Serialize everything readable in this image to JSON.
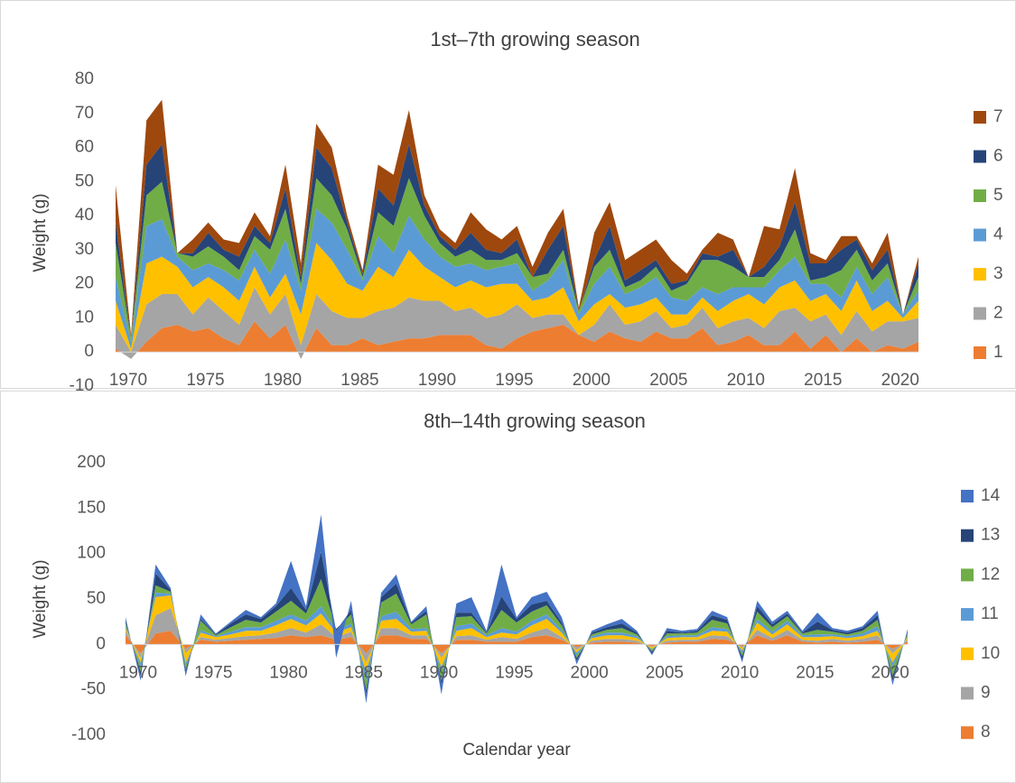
{
  "chart_data": [
    {
      "type": "area",
      "stacked": true,
      "title": "1st–7th growing season",
      "y_label": "Weight (g)",
      "x": [
        1970,
        1971,
        1972,
        1973,
        1974,
        1975,
        1976,
        1977,
        1978,
        1979,
        1980,
        1981,
        1982,
        1983,
        1984,
        1985,
        1986,
        1987,
        1988,
        1989,
        1990,
        1991,
        1992,
        1993,
        1994,
        1995,
        1996,
        1997,
        1998,
        1999,
        2000,
        2001,
        2002,
        2003,
        2004,
        2005,
        2006,
        2007,
        2008,
        2009,
        2010,
        2011,
        2012,
        2013,
        2014,
        2015,
        2016,
        2017,
        2018,
        2019,
        2020,
        2021,
        2022
      ],
      "xlim": [
        1970,
        2022
      ],
      "xticks": [
        1970,
        1975,
        1980,
        1985,
        1990,
        1995,
        2000,
        2005,
        2010,
        2015,
        2020
      ],
      "ylim": [
        -10,
        80
      ],
      "yticks": [
        -10,
        0,
        10,
        20,
        30,
        40,
        50,
        60,
        70,
        80
      ],
      "grid": false,
      "legend": "right",
      "series": [
        {
          "name": "1",
          "color": "#ED7D31",
          "values": [
            1,
            -2,
            3,
            7,
            8,
            6,
            7,
            4,
            2,
            9,
            4,
            8,
            -2,
            7,
            2,
            2,
            4,
            2,
            3,
            4,
            4,
            5,
            5,
            5,
            2,
            1,
            4,
            6,
            7,
            8,
            5,
            3,
            6,
            4,
            3,
            6,
            4,
            4,
            7,
            2,
            3,
            5,
            2,
            2,
            6,
            1,
            5,
            0,
            4,
            0,
            2,
            1,
            3
          ]
        },
        {
          "name": "2",
          "color": "#A5A5A5",
          "values": [
            7,
            2,
            11,
            10,
            9,
            5,
            9,
            8,
            6,
            10,
            7,
            9,
            4,
            10,
            10,
            8,
            6,
            10,
            10,
            12,
            11,
            10,
            7,
            8,
            8,
            10,
            10,
            4,
            4,
            3,
            0,
            5,
            8,
            4,
            6,
            6,
            3,
            4,
            6,
            5,
            6,
            5,
            5,
            10,
            7,
            8,
            6,
            5,
            8,
            6,
            7,
            8,
            7
          ]
        },
        {
          "name": "3",
          "color": "#FFC000",
          "values": [
            7,
            1,
            12,
            11,
            8,
            8,
            6,
            7,
            7,
            6,
            5,
            6,
            9,
            15,
            15,
            10,
            8,
            13,
            9,
            14,
            10,
            7,
            7,
            8,
            9,
            9,
            6,
            5,
            5,
            8,
            4,
            6,
            3,
            5,
            5,
            4,
            4,
            3,
            3,
            5,
            6,
            7,
            7,
            7,
            8,
            6,
            6,
            7,
            9,
            6,
            6,
            1,
            5
          ]
        },
        {
          "name": "4",
          "color": "#5B9BD5",
          "values": [
            7,
            2,
            11,
            11,
            3,
            5,
            4,
            5,
            6,
            5,
            7,
            10,
            7,
            10,
            11,
            10,
            3,
            9,
            7,
            10,
            8,
            6,
            6,
            5,
            5,
            5,
            6,
            3,
            5,
            8,
            2,
            6,
            8,
            4,
            5,
            6,
            5,
            4,
            3,
            5,
            4,
            2,
            5,
            5,
            7,
            5,
            3,
            4,
            4,
            5,
            7,
            1,
            3
          ]
        },
        {
          "name": "5",
          "color": "#70AD47",
          "values": [
            10,
            1,
            9,
            11,
            1,
            4,
            5,
            4,
            3,
            4,
            7,
            9,
            2,
            9,
            8,
            6,
            1,
            7,
            8,
            11,
            7,
            4,
            3,
            4,
            3,
            2,
            3,
            4,
            2,
            3,
            1,
            5,
            5,
            2,
            2,
            3,
            2,
            5,
            8,
            10,
            6,
            3,
            3,
            3,
            8,
            1,
            2,
            8,
            5,
            4,
            4,
            0,
            4
          ]
        },
        {
          "name": "6",
          "color": "#264478",
          "values": [
            6,
            0,
            9,
            11,
            0,
            1,
            4,
            2,
            4,
            3,
            2,
            6,
            2,
            9,
            8,
            2,
            1,
            7,
            6,
            10,
            3,
            2,
            2,
            5,
            3,
            2,
            4,
            0,
            7,
            7,
            0,
            2,
            7,
            2,
            3,
            2,
            2,
            1,
            2,
            1,
            5,
            0,
            3,
            4,
            8,
            5,
            4,
            6,
            3,
            3,
            4,
            0,
            4
          ]
        },
        {
          "name": "7",
          "color": "#9E480E",
          "values": [
            11,
            1,
            13,
            13,
            0,
            4,
            3,
            3,
            4,
            4,
            2,
            7,
            4,
            7,
            6,
            2,
            1,
            7,
            9,
            10,
            3,
            2,
            2,
            6,
            6,
            4,
            4,
            3,
            5,
            5,
            1,
            8,
            7,
            6,
            6,
            6,
            7,
            2,
            1,
            7,
            3,
            0,
            12,
            5,
            10,
            3,
            1,
            4,
            1,
            2,
            5,
            0,
            2
          ]
        }
      ]
    },
    {
      "type": "area",
      "stacked": true,
      "title": "8th–14th growing season",
      "y_label": "Weight (g)",
      "x_label": "Calendar year",
      "x": [
        1970,
        1971,
        1972,
        1973,
        1974,
        1975,
        1976,
        1977,
        1978,
        1979,
        1980,
        1981,
        1982,
        1983,
        1984,
        1985,
        1986,
        1987,
        1988,
        1989,
        1990,
        1991,
        1992,
        1993,
        1994,
        1995,
        1996,
        1997,
        1998,
        1999,
        2000,
        2001,
        2002,
        2003,
        2004,
        2005,
        2006,
        2007,
        2008,
        2009,
        2010,
        2011,
        2012,
        2013,
        2014,
        2015,
        2016,
        2017,
        2018,
        2019,
        2020,
        2021,
        2022
      ],
      "xlim": [
        1970,
        2022
      ],
      "xticks": [
        1970,
        1975,
        1980,
        1985,
        1990,
        1995,
        2000,
        2005,
        2010,
        2015,
        2020
      ],
      "ylim": [
        -100,
        200
      ],
      "yticks": [
        -100,
        -50,
        0,
        50,
        100,
        150,
        200
      ],
      "grid": false,
      "legend": "right",
      "series": [
        {
          "name": "8",
          "color": "#ED7D31",
          "values": [
            10,
            -10,
            12,
            15,
            -5,
            5,
            3,
            4,
            5,
            6,
            7,
            10,
            8,
            10,
            5,
            8,
            -10,
            10,
            10,
            6,
            6,
            -10,
            5,
            5,
            3,
            3,
            3,
            8,
            10,
            5,
            -3,
            2,
            3,
            3,
            2,
            -2,
            2,
            3,
            3,
            6,
            5,
            -2,
            10,
            4,
            10,
            3,
            2,
            3,
            2,
            3,
            5,
            -5,
            3
          ]
        },
        {
          "name": "9",
          "color": "#A5A5A5",
          "values": [
            5,
            -5,
            20,
            25,
            -5,
            3,
            2,
            3,
            4,
            4,
            6,
            8,
            5,
            12,
            3,
            6,
            -10,
            8,
            8,
            4,
            4,
            -5,
            4,
            5,
            2,
            5,
            3,
            5,
            8,
            3,
            -3,
            2,
            3,
            3,
            2,
            -1,
            2,
            2,
            2,
            4,
            4,
            -2,
            6,
            3,
            6,
            2,
            2,
            3,
            2,
            3,
            5,
            -5,
            2
          ]
        },
        {
          "name": "10",
          "color": "#FFC000",
          "values": [
            3,
            -5,
            20,
            14,
            -10,
            5,
            3,
            4,
            6,
            5,
            8,
            10,
            8,
            12,
            5,
            5,
            -10,
            8,
            10,
            4,
            5,
            -10,
            6,
            8,
            3,
            5,
            5,
            8,
            10,
            5,
            -3,
            3,
            4,
            4,
            3,
            -2,
            3,
            3,
            3,
            5,
            5,
            -3,
            8,
            4,
            6,
            3,
            4,
            3,
            3,
            3,
            5,
            -10,
            3
          ]
        },
        {
          "name": "11",
          "color": "#5B9BD5",
          "values": [
            3,
            -5,
            5,
            2,
            -3,
            3,
            1,
            3,
            4,
            4,
            5,
            5,
            5,
            8,
            2,
            4,
            -10,
            5,
            8,
            3,
            3,
            -5,
            5,
            5,
            2,
            5,
            3,
            5,
            5,
            3,
            -3,
            2,
            3,
            3,
            2,
            -1,
            2,
            2,
            2,
            4,
            3,
            -3,
            4,
            3,
            4,
            2,
            3,
            2,
            2,
            3,
            5,
            -5,
            2
          ]
        },
        {
          "name": "12",
          "color": "#70AD47",
          "values": [
            3,
            -5,
            8,
            2,
            -5,
            10,
            1,
            5,
            8,
            5,
            10,
            15,
            8,
            30,
            2,
            10,
            -10,
            15,
            20,
            5,
            15,
            -10,
            10,
            8,
            2,
            20,
            10,
            10,
            10,
            5,
            -3,
            2,
            3,
            5,
            2,
            -2,
            3,
            2,
            3,
            8,
            6,
            -3,
            8,
            5,
            5,
            2,
            5,
            3,
            2,
            3,
            7,
            -10,
            3
          ]
        },
        {
          "name": "13",
          "color": "#264478",
          "values": [
            3,
            -5,
            13,
            2,
            -3,
            2,
            1,
            4,
            6,
            4,
            6,
            14,
            4,
            30,
            -2,
            5,
            -5,
            6,
            11,
            2,
            4,
            -5,
            5,
            4,
            1,
            15,
            4,
            8,
            5,
            3,
            -3,
            2,
            3,
            5,
            2,
            -2,
            3,
            1,
            2,
            5,
            4,
            -4,
            6,
            3,
            3,
            1,
            9,
            2,
            2,
            3,
            5,
            -5,
            2
          ]
        },
        {
          "name": "14",
          "color": "#4472C4",
          "values": [
            3,
            -5,
            10,
            2,
            -4,
            5,
            1,
            2,
            5,
            2,
            3,
            30,
            4,
            41,
            -30,
            10,
            -10,
            5,
            10,
            1,
            5,
            -10,
            10,
            17,
            2,
            35,
            2,
            8,
            10,
            6,
            -4,
            2,
            3,
            5,
            2,
            -2,
            3,
            2,
            2,
            5,
            3,
            -3,
            6,
            3,
            3,
            2,
            10,
            2,
            2,
            2,
            5,
            -5,
            2
          ]
        }
      ]
    }
  ]
}
